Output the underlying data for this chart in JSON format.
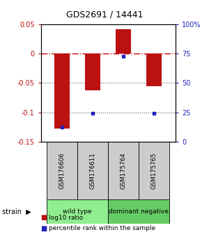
{
  "title": "GDS2691 / 14441",
  "samples": [
    "GSM176606",
    "GSM176611",
    "GSM175764",
    "GSM175765"
  ],
  "log10_ratio": [
    -0.128,
    -0.063,
    0.042,
    -0.055
  ],
  "percentile_rank_pct": [
    12,
    24,
    73,
    24
  ],
  "groups": [
    {
      "label": "wild type",
      "samples": [
        0,
        1
      ],
      "color": "#90ee90"
    },
    {
      "label": "dominant negative",
      "samples": [
        2,
        3
      ],
      "color": "#66cc66"
    }
  ],
  "ylim_left": [
    -0.15,
    0.05
  ],
  "ylim_right": [
    0,
    100
  ],
  "left_ticks": [
    -0.15,
    -0.1,
    -0.05,
    0,
    0.05
  ],
  "right_ticks": [
    0,
    25,
    50,
    75,
    100
  ],
  "bar_color": "#bb1111",
  "dot_color": "#2222bb",
  "hline_color": "#cc0000",
  "legend_bar_label": "log10 ratio",
  "legend_dot_label": "percentile rank within the sample",
  "background_color": "#ffffff",
  "plot_bg": "#ffffff",
  "grid_dotted_color": "#555555",
  "sample_box_color": "#cccccc",
  "bar_width": 0.5
}
